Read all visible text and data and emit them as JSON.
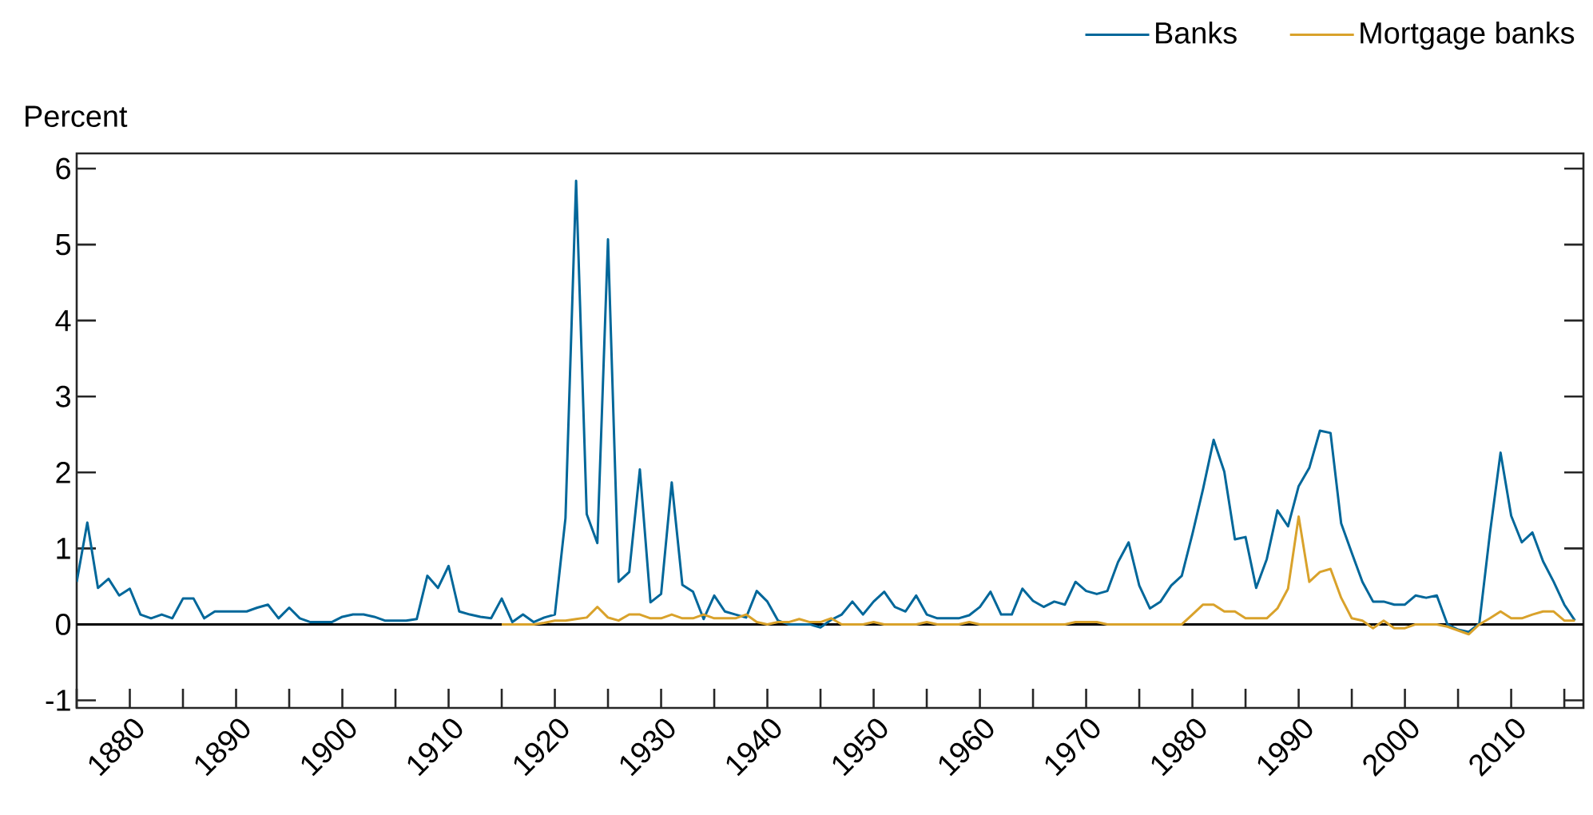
{
  "chart_data": {
    "type": "line",
    "ylabel": "Percent",
    "xlim": [
      1875,
      2016.8
    ],
    "ylim": [
      -1.1,
      6.2
    ],
    "xticks": [
      {
        "value": 1875,
        "label": null
      },
      1880,
      {
        "value": 1885,
        "label": null
      },
      1890,
      {
        "value": 1895,
        "label": null
      },
      1900,
      {
        "value": 1905,
        "label": null
      },
      1910,
      {
        "value": 1915,
        "label": null
      },
      1920,
      {
        "value": 1925,
        "label": null
      },
      1930,
      {
        "value": 1935,
        "label": null
      },
      1940,
      {
        "value": 1945,
        "label": null
      },
      1950,
      {
        "value": 1955,
        "label": null
      },
      1960,
      {
        "value": 1965,
        "label": null
      },
      1970,
      {
        "value": 1975,
        "label": null
      },
      1980,
      {
        "value": 1985,
        "label": null
      },
      1990,
      {
        "value": 1995,
        "label": null
      },
      2000,
      {
        "value": 2005,
        "label": null
      },
      2010,
      {
        "value": 2015,
        "label": null
      }
    ],
    "yticks": [
      -1,
      0,
      1,
      2,
      3,
      4,
      5,
      6
    ],
    "legend": "top right",
    "marker": "none",
    "line_style": "solid",
    "ref_lines": [
      {
        "axis": "y",
        "value": 0,
        "color": "#000000"
      }
    ],
    "series": [
      {
        "name": "Banks",
        "color": "#00679a",
        "x": [
          1875,
          1876,
          1877,
          1878,
          1879,
          1880,
          1881,
          1882,
          1883,
          1884,
          1885,
          1886,
          1887,
          1888,
          1889,
          1890,
          1891,
          1892,
          1893,
          1894,
          1895,
          1896,
          1897,
          1898,
          1899,
          1900,
          1901,
          1902,
          1903,
          1904,
          1905,
          1906,
          1907,
          1908,
          1909,
          1910,
          1911,
          1912,
          1913,
          1914,
          1915,
          1916,
          1917,
          1918,
          1919,
          1920,
          1921,
          1922,
          1923,
          1924,
          1925,
          1926,
          1927,
          1928,
          1929,
          1930,
          1931,
          1932,
          1933,
          1934,
          1935,
          1936,
          1937,
          1938,
          1939,
          1940,
          1941,
          1942,
          1943,
          1944,
          1945,
          1946,
          1947,
          1948,
          1949,
          1950,
          1951,
          1952,
          1953,
          1954,
          1955,
          1956,
          1957,
          1958,
          1959,
          1960,
          1961,
          1962,
          1963,
          1964,
          1965,
          1966,
          1967,
          1968,
          1969,
          1970,
          1971,
          1972,
          1973,
          1974,
          1975,
          1976,
          1977,
          1978,
          1979,
          1980,
          1981,
          1982,
          1983,
          1984,
          1985,
          1986,
          1987,
          1988,
          1989,
          1990,
          1991,
          1992,
          1993,
          1994,
          1995,
          1996,
          1997,
          1998,
          1999,
          2000,
          2001,
          2002,
          2003,
          2004,
          2005,
          2006,
          2007,
          2008,
          2009,
          2010,
          2011,
          2012,
          2013,
          2014,
          2015,
          2016
        ],
        "values": [
          0.56,
          1.34,
          0.48,
          0.6,
          0.38,
          0.47,
          0.13,
          0.08,
          0.13,
          0.08,
          0.34,
          0.34,
          0.08,
          0.17,
          0.17,
          0.17,
          0.17,
          0.22,
          0.26,
          0.08,
          0.22,
          0.08,
          0.03,
          0.03,
          0.03,
          0.1,
          0.13,
          0.13,
          0.1,
          0.05,
          0.05,
          0.05,
          0.07,
          0.64,
          0.48,
          0.77,
          0.17,
          0.13,
          0.1,
          0.08,
          0.34,
          0.03,
          0.13,
          0.03,
          0.09,
          0.13,
          1.4,
          5.84,
          1.45,
          1.07,
          5.07,
          0.56,
          0.69,
          2.04,
          0.29,
          0.4,
          1.87,
          0.52,
          0.43,
          0.07,
          0.38,
          0.17,
          0.13,
          0.09,
          0.44,
          0.3,
          0.05,
          0,
          0,
          0,
          -0.04,
          0.06,
          0.13,
          0.3,
          0.13,
          0.3,
          0.43,
          0.23,
          0.17,
          0.38,
          0.13,
          0.08,
          0.08,
          0.08,
          0.12,
          0.23,
          0.43,
          0.13,
          0.13,
          0.47,
          0.31,
          0.23,
          0.3,
          0.26,
          0.56,
          0.44,
          0.4,
          0.44,
          0.82,
          1.08,
          0.51,
          0.21,
          0.3,
          0.51,
          0.64,
          1.19,
          1.78,
          2.43,
          2.01,
          1.12,
          1.15,
          0.48,
          0.86,
          1.5,
          1.29,
          1.82,
          2.06,
          2.55,
          2.52,
          1.33,
          0.94,
          0.56,
          0.3,
          0.3,
          0.26,
          0.26,
          0.38,
          0.35,
          0.38,
          0,
          -0.07,
          -0.1,
          0.01,
          1.2,
          2.26,
          1.43,
          1.08,
          1.21,
          0.83,
          0.56,
          0.26,
          0.05
        ]
      },
      {
        "name": "Mortgage banks",
        "color": "#d9a22b",
        "x": [
          1915,
          1916,
          1917,
          1918,
          1919,
          1920,
          1921,
          1922,
          1923,
          1924,
          1925,
          1926,
          1927,
          1928,
          1929,
          1930,
          1931,
          1932,
          1933,
          1934,
          1935,
          1936,
          1937,
          1938,
          1939,
          1940,
          1941,
          1942,
          1943,
          1944,
          1945,
          1946,
          1947,
          1948,
          1949,
          1950,
          1951,
          1952,
          1953,
          1954,
          1955,
          1956,
          1957,
          1958,
          1959,
          1960,
          1961,
          1962,
          1963,
          1964,
          1965,
          1966,
          1967,
          1968,
          1969,
          1970,
          1971,
          1972,
          1973,
          1974,
          1975,
          1976,
          1977,
          1978,
          1979,
          1980,
          1981,
          1982,
          1983,
          1984,
          1985,
          1986,
          1987,
          1988,
          1989,
          1990,
          1991,
          1992,
          1993,
          1994,
          1995,
          1996,
          1997,
          1998,
          1999,
          2000,
          2001,
          2002,
          2003,
          2004,
          2005,
          2006,
          2007,
          2008,
          2009,
          2010,
          2011,
          2012,
          2013,
          2014,
          2015,
          2016
        ],
        "values": [
          0,
          0,
          0,
          0,
          0.02,
          0.05,
          0.05,
          0.07,
          0.09,
          0.23,
          0.09,
          0.05,
          0.13,
          0.13,
          0.08,
          0.08,
          0.13,
          0.08,
          0.08,
          0.13,
          0.08,
          0.08,
          0.08,
          0.13,
          0.03,
          0,
          0.03,
          0.03,
          0.07,
          0.03,
          0.03,
          0.08,
          0,
          0,
          0,
          0.03,
          0,
          0,
          0,
          0,
          0.03,
          0,
          0,
          0,
          0.03,
          0,
          0,
          0,
          0,
          0,
          0,
          0,
          0,
          0,
          0.03,
          0.03,
          0.03,
          0,
          0,
          0,
          0,
          0,
          0,
          0,
          0,
          0.13,
          0.26,
          0.26,
          0.17,
          0.17,
          0.08,
          0.08,
          0.08,
          0.21,
          0.47,
          1.42,
          0.56,
          0.69,
          0.73,
          0.35,
          0.08,
          0.05,
          -0.05,
          0.05,
          -0.05,
          -0.05,
          0,
          0,
          0,
          -0.03,
          -0.08,
          -0.13,
          0,
          0.08,
          0.17,
          0.08,
          0.08,
          0.13,
          0.17,
          0.17,
          0.05,
          0.05
        ]
      }
    ]
  }
}
